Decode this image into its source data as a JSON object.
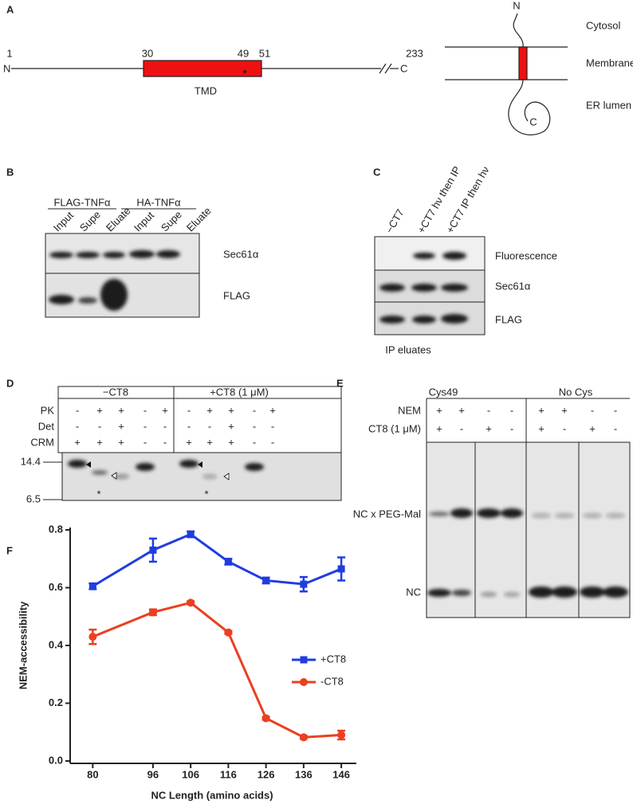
{
  "panel_a": {
    "label": "A",
    "n_term": "N",
    "c_term": "C",
    "positions": [
      "1",
      "30",
      "49",
      "51",
      "233"
    ],
    "site_marker": "*",
    "domain": "TMD",
    "topology": {
      "n_term": "N",
      "c_term": "C",
      "compartments": [
        "Cytosol",
        "Membrane",
        "ER lumen"
      ]
    }
  },
  "panel_b": {
    "label": "B",
    "groups": [
      "FLAG-TNFα",
      "HA-TNFα"
    ],
    "lanes": [
      "Input",
      "Supe",
      "Eluate",
      "Input",
      "Supe",
      "Eluate"
    ],
    "blots": [
      "Sec61α",
      "FLAG"
    ]
  },
  "panel_c": {
    "label": "C",
    "lanes": [
      "−CT7",
      "+CT7 hν then IP",
      "+CT7 IP then hν"
    ],
    "blots": [
      "Fluorescence",
      "Sec61α",
      "FLAG"
    ],
    "caption": "IP eluates"
  },
  "panel_d": {
    "label": "D",
    "groups": [
      "−CT8",
      "+CT8 (1 μM)"
    ],
    "rows": [
      {
        "name": "PK",
        "signs": [
          "-",
          "+",
          "+",
          "-",
          "+",
          "-",
          "+",
          "+",
          "-",
          "+"
        ]
      },
      {
        "name": "Det",
        "signs": [
          "-",
          "-",
          "+",
          "-",
          "-",
          "-",
          "-",
          "+",
          "-",
          "-"
        ]
      },
      {
        "name": "CRM",
        "signs": [
          "+",
          "+",
          "+",
          "-",
          "-",
          "+",
          "+",
          "+",
          "-",
          "-"
        ]
      }
    ],
    "size_markers": [
      "14.4",
      "6.5"
    ],
    "asterisks": [
      "*",
      "*"
    ]
  },
  "panel_e": {
    "label": "E",
    "groups": [
      "Cys49",
      "No Cys"
    ],
    "rows": [
      {
        "name": "NEM",
        "signs": [
          "+",
          "+",
          "-",
          "-",
          "+",
          "+",
          "-",
          "-"
        ]
      },
      {
        "name": "CT8 (1 μM)",
        "signs": [
          "+",
          "-",
          "+",
          "-",
          "+",
          "-",
          "+",
          "-"
        ]
      }
    ],
    "bands": [
      "NC x PEG-Mal",
      "NC"
    ]
  },
  "panel_f": {
    "label": "F"
  },
  "chart_data": {
    "type": "line",
    "x_label": "NC Length (amino acids)",
    "y_label": "NEM-accessibility",
    "x": [
      80,
      96,
      106,
      116,
      126,
      136,
      146
    ],
    "xlim": [
      74,
      150
    ],
    "xticks": [
      80,
      96,
      106,
      116,
      126,
      136,
      146
    ],
    "ylim": [
      0,
      0.8
    ],
    "yticks": [
      {
        "value": 0,
        "label": "0.0"
      },
      0.2,
      0.4,
      0.6,
      0.8
    ],
    "legend": "center right",
    "series": [
      {
        "name": "+CT8",
        "color": "#1f3de0",
        "marker": "square",
        "values": [
          0.605,
          0.73,
          0.785,
          0.69,
          0.625,
          0.612,
          0.665
        ],
        "errors": [
          0.01,
          0.04,
          0.01,
          0.01,
          0.01,
          0.025,
          0.04
        ]
      },
      {
        "name": "-CT8",
        "color": "#ea4020",
        "marker": "circle",
        "values": [
          0.43,
          0.515,
          0.548,
          0.445,
          0.148,
          0.082,
          0.09
        ],
        "errors": [
          0.025,
          0.01,
          0.005,
          0.005,
          0.005,
          0.005,
          0.015
        ]
      }
    ]
  }
}
